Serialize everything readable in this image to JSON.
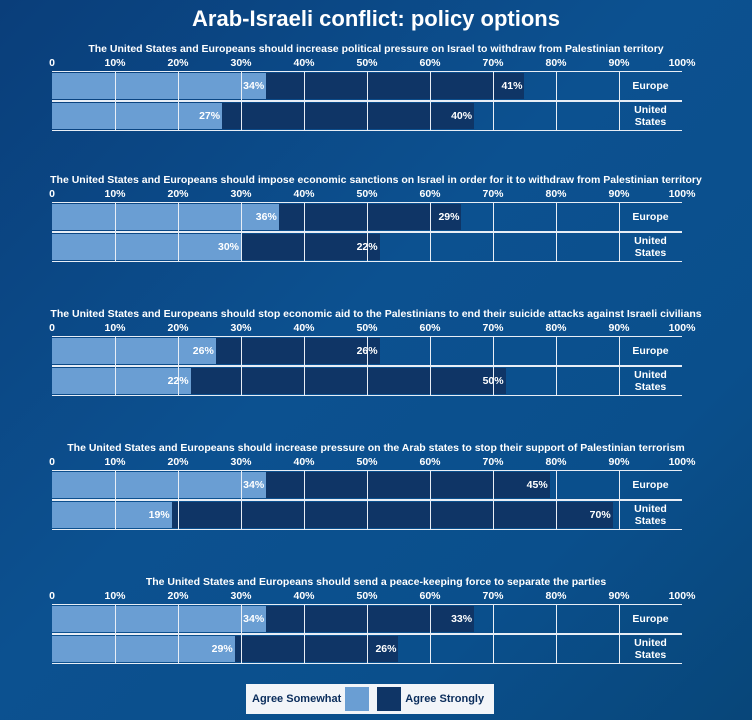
{
  "chart_data": {
    "type": "bar",
    "stacked": true,
    "orientation": "horizontal",
    "title": "Arab-Israeli conflict:  policy options",
    "xlim": [
      0,
      100
    ],
    "ticks": [
      "0",
      "10%",
      "20%",
      "30%",
      "40%",
      "50%",
      "60%",
      "70%",
      "80%",
      "90%",
      "100%"
    ],
    "grid": true,
    "legend_position": "bottom-center",
    "legend": [
      "Agree Somewhat",
      "Agree Strongly"
    ],
    "colors": {
      "somewhat": "#6a9ed3",
      "strongly": "#0f3566"
    },
    "regions": [
      "Europe",
      "United States"
    ],
    "panels": [
      {
        "question": "The United States and Europeans should increase political pressure on Israel to withdraw from Palestinian territory",
        "somewhat": [
          34,
          27
        ],
        "strongly": [
          41,
          40
        ]
      },
      {
        "question": "The United States and Europeans should impose economic sanctions on Israel in order for it to withdraw from Palestinian territory",
        "somewhat": [
          36,
          30
        ],
        "strongly": [
          29,
          22
        ]
      },
      {
        "question": "The United States and Europeans should stop economic aid to the Palestinians to end their suicide attacks against Israeli civilians",
        "somewhat": [
          26,
          22
        ],
        "strongly": [
          26,
          50
        ]
      },
      {
        "question": "The United States and Europeans should increase pressure on the Arab states to stop their support of Palestinian terrorism",
        "somewhat": [
          34,
          19
        ],
        "strongly": [
          45,
          70
        ]
      },
      {
        "question": "The United States and Europeans should send a peace-keeping force to separate the parties",
        "somewhat": [
          34,
          29
        ],
        "strongly": [
          33,
          26
        ]
      }
    ]
  }
}
